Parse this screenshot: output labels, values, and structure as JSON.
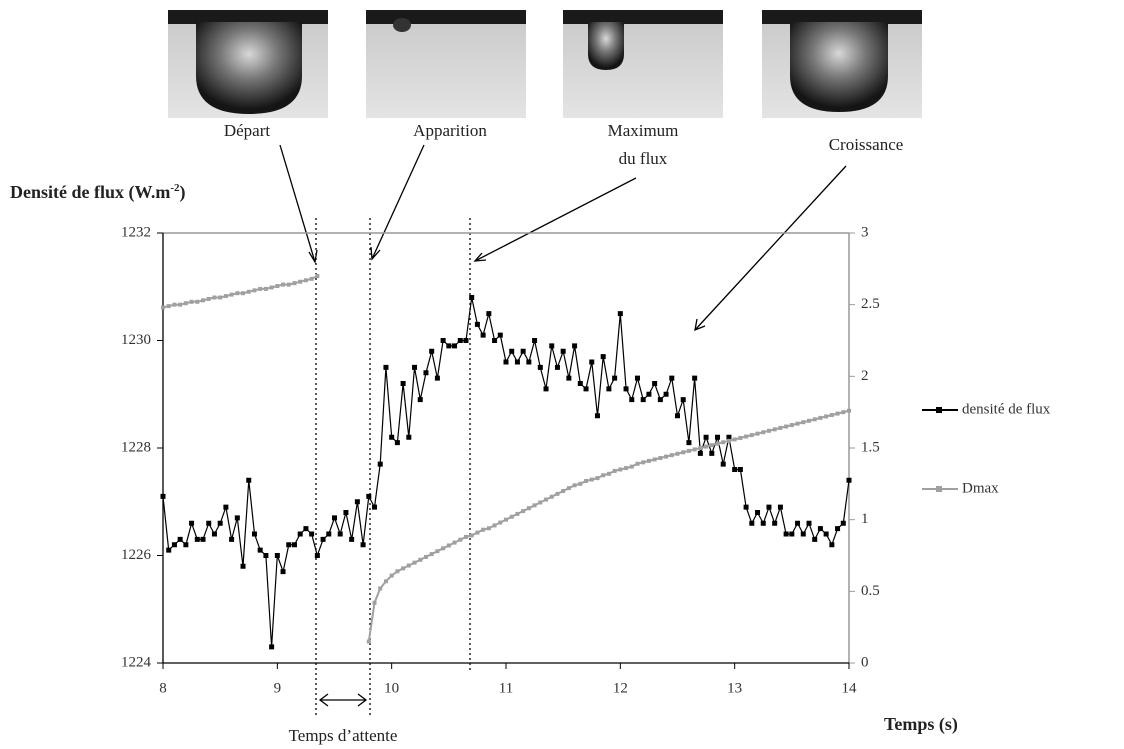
{
  "chart_data": {
    "type": "line",
    "xlabel": "Temps (s)",
    "ylabel": {
      "text": "Densité de flux (W.m",
      "sup": "-2",
      "end": ")"
    },
    "annotations": {
      "depart": "Départ",
      "apparition": "Apparition",
      "maximum": "Maximum",
      "maximum_2": "du flux",
      "croissance": "Croissance",
      "attente": "Temps d’attente"
    },
    "xlim": [
      8,
      14
    ],
    "xticks": [
      8,
      9,
      10,
      11,
      12,
      13,
      14
    ],
    "ylim": [
      1224,
      1232
    ],
    "yticks": [
      1224,
      1226,
      1228,
      1230,
      1232
    ],
    "y2lim": [
      0,
      3
    ],
    "y2ticks": [
      0,
      0.5,
      1,
      1.5,
      2,
      2.5,
      3
    ],
    "x": [
      8.0,
      8.05,
      8.1,
      8.15,
      8.2,
      8.25,
      8.3,
      8.35,
      8.4,
      8.45,
      8.5,
      8.55,
      8.6,
      8.65,
      8.7,
      8.75,
      8.8,
      8.85,
      8.9,
      8.95,
      9.0,
      9.05,
      9.1,
      9.15,
      9.2,
      9.25,
      9.3,
      9.35,
      9.4,
      9.45,
      9.5,
      9.55,
      9.6,
      9.65,
      9.7,
      9.75,
      9.8,
      9.85,
      9.9,
      9.95,
      10.0,
      10.05,
      10.1,
      10.15,
      10.2,
      10.25,
      10.3,
      10.35,
      10.4,
      10.45,
      10.5,
      10.55,
      10.6,
      10.65,
      10.7,
      10.75,
      10.8,
      10.85,
      10.9,
      10.95,
      11.0,
      11.05,
      11.1,
      11.15,
      11.2,
      11.25,
      11.3,
      11.35,
      11.4,
      11.45,
      11.5,
      11.55,
      11.6,
      11.65,
      11.7,
      11.75,
      11.8,
      11.85,
      11.9,
      11.95,
      12.0,
      12.05,
      12.1,
      12.15,
      12.2,
      12.25,
      12.3,
      12.35,
      12.4,
      12.45,
      12.5,
      12.55,
      12.6,
      12.65,
      12.7,
      12.75,
      12.8,
      12.85,
      12.9,
      12.95,
      13.0,
      13.05,
      13.1,
      13.15,
      13.2,
      13.25,
      13.3,
      13.35,
      13.4,
      13.45,
      13.5,
      13.55,
      13.6,
      13.65,
      13.7,
      13.75,
      13.8,
      13.85,
      13.9,
      13.95,
      14.0
    ],
    "series": [
      {
        "name": "densité de flux",
        "color": "#000000",
        "axis": "y",
        "values": [
          1227.1,
          1226.1,
          1226.2,
          1226.3,
          1226.2,
          1226.6,
          1226.3,
          1226.3,
          1226.6,
          1226.4,
          1226.6,
          1226.9,
          1226.3,
          1226.7,
          1225.8,
          1227.4,
          1226.4,
          1226.1,
          1226.0,
          1224.3,
          1226.0,
          1225.7,
          1226.2,
          1226.2,
          1226.4,
          1226.5,
          1226.4,
          1226.0,
          1226.3,
          1226.4,
          1226.7,
          1226.4,
          1226.8,
          1226.3,
          1227.0,
          1226.2,
          1227.1,
          1226.9,
          1227.7,
          1229.5,
          1228.2,
          1228.1,
          1229.2,
          1228.2,
          1229.5,
          1228.9,
          1229.4,
          1229.8,
          1229.3,
          1230.0,
          1229.9,
          1229.9,
          1230.0,
          1230.0,
          1230.8,
          1230.3,
          1230.1,
          1230.5,
          1230.0,
          1230.1,
          1229.6,
          1229.8,
          1229.6,
          1229.8,
          1229.6,
          1230.0,
          1229.5,
          1229.1,
          1229.9,
          1229.5,
          1229.8,
          1229.3,
          1229.9,
          1229.2,
          1229.1,
          1229.6,
          1228.6,
          1229.7,
          1229.1,
          1229.3,
          1230.5,
          1229.1,
          1228.9,
          1229.3,
          1228.9,
          1229.0,
          1229.2,
          1228.9,
          1229.0,
          1229.3,
          1228.6,
          1228.9,
          1228.1,
          1229.3,
          1227.9,
          1228.2,
          1227.9,
          1228.2,
          1227.7,
          1228.2,
          1227.6,
          1227.6,
          1226.9,
          1226.6,
          1226.8,
          1226.6,
          1226.9,
          1226.6,
          1226.9,
          1226.4,
          1226.4,
          1226.6,
          1226.4,
          1226.6,
          1226.3,
          1226.5,
          1226.4,
          1226.2,
          1226.5,
          1226.6,
          1227.4
        ]
      },
      {
        "name": "Dmax",
        "color": "#a0a0a0",
        "axis": "y2",
        "values": [
          2.48,
          2.49,
          2.5,
          2.5,
          2.51,
          2.52,
          2.52,
          2.53,
          2.54,
          2.55,
          2.55,
          2.56,
          2.57,
          2.58,
          2.58,
          2.59,
          2.6,
          2.61,
          2.61,
          2.62,
          2.63,
          2.64,
          2.64,
          2.65,
          2.66,
          2.67,
          2.68,
          2.7,
          null,
          null,
          null,
          null,
          null,
          null,
          null,
          null,
          0.15,
          0.42,
          0.52,
          0.57,
          0.61,
          0.64,
          0.66,
          0.68,
          0.7,
          0.72,
          0.74,
          0.76,
          0.78,
          0.8,
          0.82,
          0.84,
          0.86,
          0.88,
          0.89,
          0.91,
          0.93,
          0.94,
          0.96,
          0.98,
          1.0,
          1.02,
          1.04,
          1.06,
          1.08,
          1.1,
          1.12,
          1.14,
          1.16,
          1.18,
          1.2,
          1.22,
          1.24,
          1.25,
          1.27,
          1.28,
          1.29,
          1.31,
          1.32,
          1.34,
          1.35,
          1.36,
          1.37,
          1.39,
          1.4,
          1.41,
          1.42,
          1.43,
          1.44,
          1.45,
          1.46,
          1.47,
          1.48,
          1.49,
          1.5,
          1.51,
          1.52,
          1.53,
          1.54,
          1.55,
          1.56,
          1.57,
          1.58,
          1.59,
          1.6,
          1.61,
          1.62,
          1.63,
          1.64,
          1.65,
          1.66,
          1.67,
          1.68,
          1.69,
          1.7,
          1.71,
          1.72,
          1.73,
          1.74,
          1.75,
          1.76
        ]
      }
    ]
  }
}
